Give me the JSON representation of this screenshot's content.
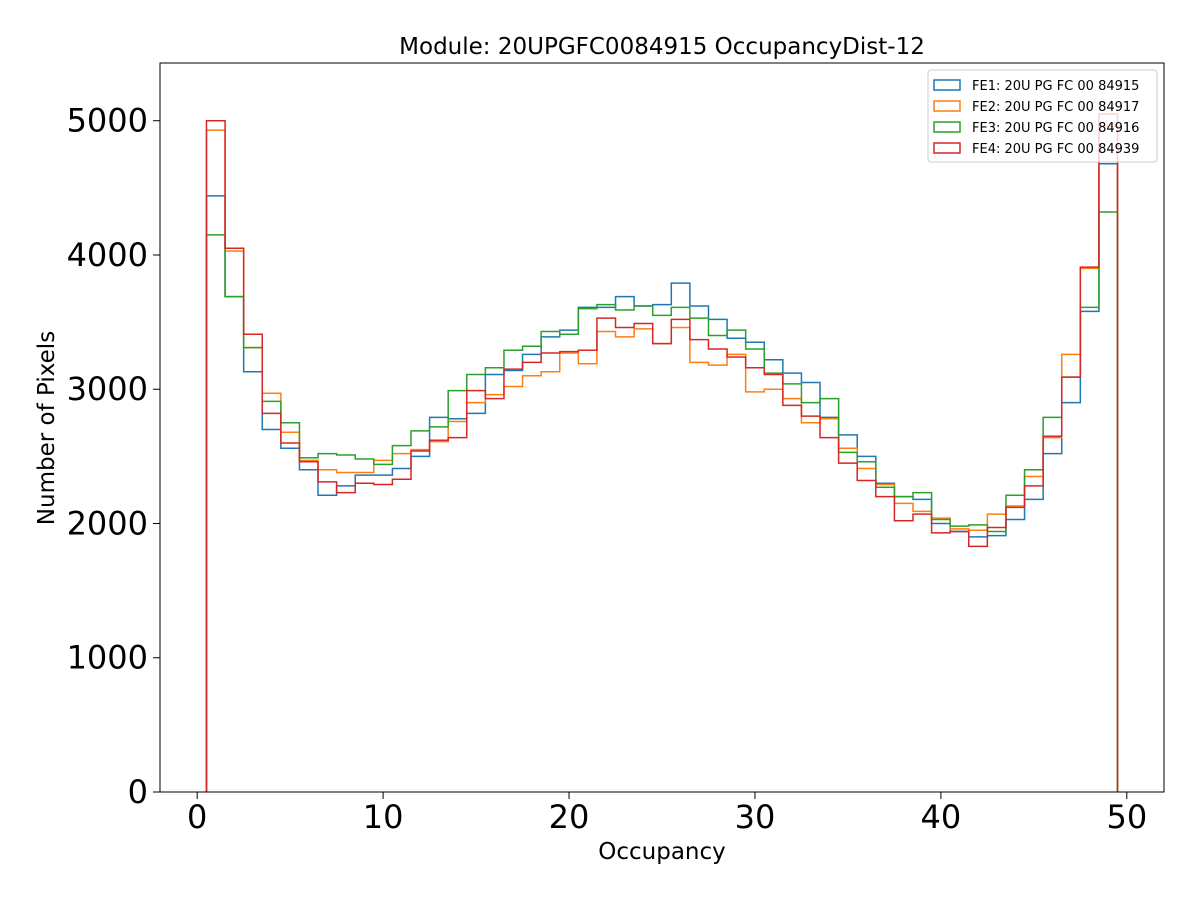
{
  "chart_data": {
    "type": "histogram",
    "title": "Module: 20UPGFC0084915 OccupancyDist-12",
    "xlabel": "Occupancy",
    "ylabel": "Number of Pixels",
    "xlim": [
      -2,
      52
    ],
    "ylim": [
      0,
      5430
    ],
    "xticks": [
      0,
      10,
      20,
      30,
      40,
      50
    ],
    "yticks": [
      0,
      1000,
      2000,
      3000,
      4000,
      5000
    ],
    "bin_start": 0.5,
    "bin_width": 1,
    "legend_position": "top-right",
    "grid": false,
    "series": [
      {
        "name": "FE1: 20U PG FC 00 84915",
        "color": "#1f77b4",
        "values": [
          4440,
          3690,
          3130,
          2700,
          2560,
          2400,
          2210,
          2280,
          2360,
          2360,
          2410,
          2500,
          2790,
          2780,
          2820,
          3110,
          3140,
          3260,
          3390,
          3440,
          3610,
          3610,
          3690,
          3620,
          3630,
          3790,
          3620,
          3520,
          3380,
          3350,
          3220,
          3120,
          3050,
          2790,
          2660,
          2500,
          2300,
          2200,
          2180,
          2000,
          1940,
          1900,
          1910,
          2030,
          2180,
          2520,
          2900,
          3580,
          4680
        ]
      },
      {
        "name": "FE2: 20U PG FC 00 84917",
        "color": "#ff7f0e",
        "values": [
          4930,
          4030,
          3310,
          2970,
          2680,
          2470,
          2400,
          2380,
          2380,
          2470,
          2520,
          2550,
          2610,
          2760,
          2900,
          2960,
          3020,
          3100,
          3130,
          3270,
          3190,
          3430,
          3390,
          3450,
          3340,
          3460,
          3200,
          3180,
          3260,
          2980,
          3000,
          2930,
          2750,
          2780,
          2560,
          2410,
          2290,
          2150,
          2090,
          2040,
          1960,
          1950,
          2070,
          2130,
          2350,
          2640,
          3260,
          3900,
          4960
        ]
      },
      {
        "name": "FE3: 20U PG FC 00 84916",
        "color": "#2ca02c",
        "values": [
          4150,
          3690,
          3310,
          2910,
          2750,
          2490,
          2520,
          2510,
          2480,
          2440,
          2580,
          2690,
          2720,
          2990,
          3110,
          3160,
          3290,
          3320,
          3430,
          3410,
          3600,
          3630,
          3590,
          3620,
          3550,
          3610,
          3530,
          3400,
          3440,
          3300,
          3120,
          3040,
          2900,
          2930,
          2530,
          2460,
          2270,
          2200,
          2230,
          2030,
          1980,
          1990,
          1940,
          2210,
          2400,
          2790,
          3090,
          3610,
          4320
        ]
      },
      {
        "name": "FE4: 20U PG FC 00 84939",
        "color": "#d62728",
        "values": [
          5000,
          4050,
          3410,
          2820,
          2600,
          2460,
          2310,
          2230,
          2300,
          2290,
          2330,
          2540,
          2620,
          2640,
          2990,
          2930,
          3150,
          3200,
          3270,
          3280,
          3290,
          3530,
          3460,
          3490,
          3340,
          3520,
          3370,
          3300,
          3240,
          3160,
          3110,
          2880,
          2800,
          2640,
          2450,
          2320,
          2200,
          2020,
          2070,
          1930,
          1940,
          1830,
          1970,
          2120,
          2280,
          2650,
          3090,
          3910,
          5050
        ]
      }
    ]
  }
}
